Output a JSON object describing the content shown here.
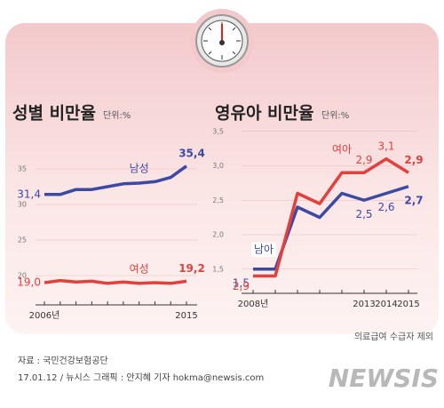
{
  "chart_data": [
    {
      "type": "line",
      "title": "성별 비만율",
      "subtitle": "단위:%",
      "categories": [
        "2006년",
        null,
        null,
        null,
        null,
        null,
        null,
        null,
        null,
        "2015"
      ],
      "series": [
        {
          "name": "남성",
          "color": "#3b4aa3",
          "values": [
            31.4,
            31.4,
            32.1,
            32.1,
            32.5,
            32.9,
            33.0,
            33.2,
            33.8,
            35.4
          ],
          "value_labels": [
            "31,4",
            null,
            null,
            null,
            null,
            null,
            null,
            null,
            null,
            "35,4"
          ]
        },
        {
          "name": "여성",
          "color": "#e2403d",
          "values": [
            19.0,
            19.3,
            19.1,
            19.2,
            18.9,
            19.1,
            18.9,
            19.0,
            18.9,
            19.2
          ],
          "value_labels": [
            "19,0",
            null,
            null,
            null,
            null,
            null,
            null,
            null,
            null,
            "19,2"
          ]
        }
      ],
      "ylim": [
        16,
        38
      ],
      "yticks": [
        20,
        25,
        30,
        35
      ],
      "grid": true
    },
    {
      "type": "line",
      "title": "영유아 비만율",
      "subtitle": "단위:%",
      "categories": [
        "2008년",
        null,
        null,
        null,
        null,
        "2013",
        "2014",
        "2015"
      ],
      "series": [
        {
          "name": "남아",
          "color": "#3b4aa3",
          "values": [
            1.5,
            1.5,
            2.4,
            2.25,
            2.6,
            2.5,
            2.6,
            2.7
          ],
          "value_labels": [
            "1,5",
            null,
            null,
            null,
            null,
            "2,5",
            "2,6",
            "2,7"
          ]
        },
        {
          "name": "여아",
          "color": "#e2403d",
          "values": [
            1.4,
            1.4,
            2.6,
            2.45,
            2.9,
            2.9,
            3.1,
            2.9
          ],
          "value_labels": [
            null,
            null,
            null,
            null,
            null,
            "2,9",
            "3,1",
            "2,9"
          ]
        }
      ],
      "annotations": [
        {
          "text": "2,9"
        }
      ],
      "note": "의료급여 수급자 제외",
      "ylim": [
        1.2,
        3.6
      ],
      "yticks": [
        {
          "value": 1.5,
          "label": "1,5"
        },
        {
          "value": 2.0,
          "label": "2,0"
        },
        {
          "value": 2.5,
          "label": "2,5"
        },
        {
          "value": 3.0,
          "label": "3,0"
        },
        {
          "value": 3.5,
          "label": "3,5"
        }
      ],
      "grid": true
    }
  ],
  "source": "자료 : 국민건강보험공단",
  "credit": "17.01.12 / 뉴시스 그래픽 : 안지혜 기자 hokma@newsis.com",
  "logo": "NEWSIS"
}
